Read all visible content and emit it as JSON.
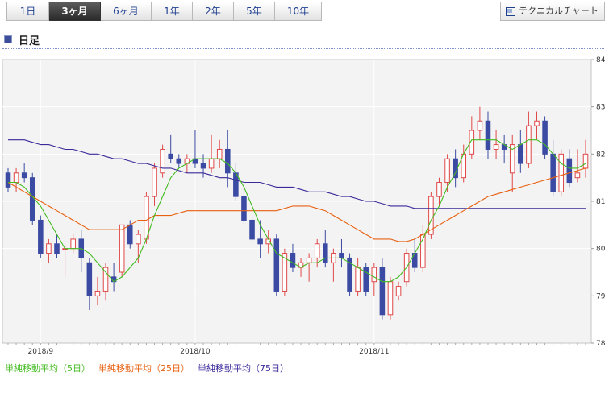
{
  "tabs": [
    {
      "label": "1日",
      "active": false
    },
    {
      "label": "3ヶ月",
      "active": true
    },
    {
      "label": "6ヶ月",
      "active": false
    },
    {
      "label": "1年",
      "active": false
    },
    {
      "label": "2年",
      "active": false
    },
    {
      "label": "5年",
      "active": false
    },
    {
      "label": "10年",
      "active": false
    }
  ],
  "technical_chart_label": "テクニカルチャート",
  "section_title": "日足",
  "legend": {
    "ma5": "単純移動平均（5日）",
    "ma25": "単純移動平均（25日）",
    "ma75": "単純移動平均（75日）"
  },
  "colors": {
    "bear": "#3b4ba3",
    "bull": "#e04848",
    "ma5": "#44bb22",
    "ma25": "#e86010",
    "ma75": "#3a2a9a"
  },
  "chart_data": {
    "type": "candlestick",
    "y_ticks": [
      "84",
      "83",
      "82",
      "81",
      "80",
      "79",
      "78"
    ],
    "ylim": [
      78,
      84
    ],
    "y_axis_side": "right",
    "grid": true,
    "x_labels": [
      {
        "text": "2018/9",
        "index": 4
      },
      {
        "text": "2018/10",
        "index": 23
      },
      {
        "text": "2018/11",
        "index": 45
      }
    ],
    "candles": [
      [
        81.6,
        81.7,
        81.2,
        81.3
      ],
      [
        81.4,
        81.7,
        81.2,
        81.6
      ],
      [
        81.6,
        81.8,
        81.4,
        81.5
      ],
      [
        81.5,
        81.6,
        80.5,
        80.6
      ],
      [
        80.6,
        80.7,
        79.8,
        79.9
      ],
      [
        79.9,
        80.2,
        79.7,
        80.1
      ],
      [
        80.1,
        80.3,
        79.8,
        79.9
      ],
      [
        80.0,
        80.1,
        79.4,
        80.0
      ],
      [
        80.0,
        80.3,
        79.9,
        80.2
      ],
      [
        80.2,
        80.4,
        79.5,
        79.8
      ],
      [
        79.7,
        79.8,
        78.7,
        79.0
      ],
      [
        79.0,
        79.4,
        78.8,
        79.1
      ],
      [
        79.1,
        79.7,
        78.9,
        79.6
      ],
      [
        79.4,
        79.7,
        79.1,
        79.3
      ],
      [
        79.5,
        80.5,
        79.4,
        80.5
      ],
      [
        80.5,
        80.6,
        80.0,
        80.1
      ],
      [
        80.1,
        80.4,
        79.7,
        80.3
      ],
      [
        80.2,
        81.2,
        80.1,
        81.1
      ],
      [
        81.1,
        81.8,
        80.9,
        81.7
      ],
      [
        81.6,
        82.2,
        81.5,
        82.1
      ],
      [
        82.0,
        82.4,
        81.8,
        81.9
      ],
      [
        81.9,
        82.0,
        81.7,
        81.8
      ],
      [
        81.8,
        82.0,
        81.6,
        81.9
      ],
      [
        81.9,
        82.5,
        81.7,
        81.8
      ],
      [
        81.8,
        82.0,
        81.5,
        81.7
      ],
      [
        81.7,
        82.4,
        81.6,
        81.9
      ],
      [
        81.9,
        82.3,
        81.7,
        82.1
      ],
      [
        82.1,
        82.5,
        81.3,
        81.6
      ],
      [
        81.6,
        81.8,
        81.0,
        81.1
      ],
      [
        81.1,
        81.3,
        80.5,
        80.6
      ],
      [
        80.6,
        80.7,
        80.1,
        80.2
      ],
      [
        80.2,
        80.6,
        79.8,
        80.1
      ],
      [
        80.1,
        80.4,
        79.9,
        80.2
      ],
      [
        80.2,
        80.3,
        79.0,
        79.1
      ],
      [
        79.1,
        80.0,
        79.0,
        79.9
      ],
      [
        79.9,
        80.1,
        79.5,
        79.6
      ],
      [
        79.6,
        79.8,
        79.4,
        79.7
      ],
      [
        79.7,
        79.9,
        79.3,
        79.8
      ],
      [
        79.8,
        80.2,
        79.6,
        80.1
      ],
      [
        80.1,
        80.4,
        79.6,
        79.7
      ],
      [
        79.7,
        80.0,
        79.3,
        79.9
      ],
      [
        79.9,
        80.2,
        79.6,
        79.8
      ],
      [
        79.8,
        79.9,
        79.0,
        79.1
      ],
      [
        79.1,
        79.8,
        79.0,
        79.6
      ],
      [
        79.6,
        79.7,
        79.0,
        79.1
      ],
      [
        79.3,
        79.7,
        79.0,
        79.6
      ],
      [
        79.6,
        79.8,
        78.5,
        78.6
      ],
      [
        78.6,
        79.4,
        78.5,
        79.3
      ],
      [
        79.0,
        79.3,
        78.9,
        79.2
      ],
      [
        79.3,
        80.0,
        79.2,
        79.9
      ],
      [
        79.9,
        80.2,
        79.5,
        79.6
      ],
      [
        79.6,
        80.5,
        79.5,
        80.3
      ],
      [
        80.3,
        81.2,
        80.2,
        81.1
      ],
      [
        81.1,
        81.5,
        80.9,
        81.4
      ],
      [
        81.4,
        82.0,
        81.2,
        81.9
      ],
      [
        81.9,
        82.1,
        81.3,
        81.5
      ],
      [
        81.5,
        82.2,
        81.4,
        82.0
      ],
      [
        82.0,
        82.8,
        81.9,
        82.5
      ],
      [
        82.5,
        83.0,
        82.3,
        82.7
      ],
      [
        82.7,
        82.9,
        81.9,
        82.1
      ],
      [
        82.1,
        82.5,
        81.9,
        82.2
      ],
      [
        82.2,
        82.4,
        81.8,
        82.1
      ],
      [
        81.6,
        82.4,
        81.2,
        82.2
      ],
      [
        82.2,
        82.5,
        81.6,
        81.8
      ],
      [
        81.8,
        82.9,
        81.7,
        82.6
      ],
      [
        82.6,
        82.9,
        82.3,
        82.7
      ],
      [
        82.7,
        82.8,
        81.9,
        82.0
      ],
      [
        82.0,
        82.3,
        81.1,
        81.2
      ],
      [
        81.2,
        82.1,
        81.1,
        82.0
      ],
      [
        81.9,
        82.1,
        81.3,
        81.4
      ],
      [
        81.5,
        82.1,
        81.4,
        81.6
      ],
      [
        81.7,
        82.3,
        81.5,
        82.0
      ]
    ],
    "ma5": [
      81.4,
      81.4,
      81.3,
      81.1,
      80.9,
      80.6,
      80.3,
      80.0,
      80.0,
      80.0,
      79.9,
      79.7,
      79.5,
      79.3,
      79.4,
      79.6,
      79.8,
      80.2,
      80.7,
      81.1,
      81.5,
      81.7,
      81.8,
      81.9,
      81.9,
      81.9,
      81.9,
      81.8,
      81.6,
      81.3,
      80.9,
      80.5,
      80.2,
      79.9,
      79.8,
      79.7,
      79.6,
      79.7,
      79.7,
      79.8,
      79.8,
      79.8,
      79.7,
      79.6,
      79.5,
      79.4,
      79.3,
      79.3,
      79.4,
      79.6,
      79.9,
      80.2,
      80.6,
      80.9,
      81.3,
      81.6,
      82.0,
      82.3,
      82.3,
      82.3,
      82.3,
      82.2,
      82.1,
      82.2,
      82.3,
      82.3,
      82.2,
      82.0,
      81.8,
      81.7,
      81.7,
      81.8
    ],
    "ma25": [
      81.4,
      81.3,
      81.2,
      81.1,
      81.0,
      80.9,
      80.8,
      80.7,
      80.6,
      80.5,
      80.4,
      80.4,
      80.4,
      80.4,
      80.4,
      80.5,
      80.6,
      80.6,
      80.7,
      80.7,
      80.7,
      80.75,
      80.8,
      80.8,
      80.8,
      80.8,
      80.8,
      80.8,
      80.8,
      80.8,
      80.8,
      80.8,
      80.8,
      80.8,
      80.85,
      80.9,
      80.9,
      80.9,
      80.85,
      80.8,
      80.7,
      80.6,
      80.5,
      80.4,
      80.3,
      80.2,
      80.2,
      80.2,
      80.15,
      80.15,
      80.2,
      80.3,
      80.4,
      80.5,
      80.6,
      80.7,
      80.8,
      80.9,
      81.0,
      81.1,
      81.15,
      81.2,
      81.25,
      81.3,
      81.35,
      81.4,
      81.45,
      81.5,
      81.55,
      81.6,
      81.65,
      81.7
    ],
    "ma75": [
      82.3,
      82.3,
      82.3,
      82.25,
      82.2,
      82.2,
      82.15,
      82.1,
      82.1,
      82.05,
      82.0,
      82.0,
      81.95,
      81.9,
      81.9,
      81.85,
      81.8,
      81.8,
      81.75,
      81.7,
      81.7,
      81.65,
      81.6,
      81.6,
      81.6,
      81.55,
      81.5,
      81.5,
      81.45,
      81.4,
      81.4,
      81.4,
      81.35,
      81.3,
      81.3,
      81.3,
      81.25,
      81.2,
      81.2,
      81.2,
      81.15,
      81.1,
      81.1,
      81.05,
      81.0,
      81.0,
      80.95,
      80.9,
      80.9,
      80.9,
      80.85,
      80.85,
      80.85,
      80.85,
      80.85,
      80.85,
      80.85,
      80.85,
      80.85,
      80.85,
      80.85,
      80.85,
      80.85,
      80.85,
      80.85,
      80.85,
      80.85,
      80.85,
      80.85,
      80.85,
      80.85,
      80.85
    ]
  }
}
